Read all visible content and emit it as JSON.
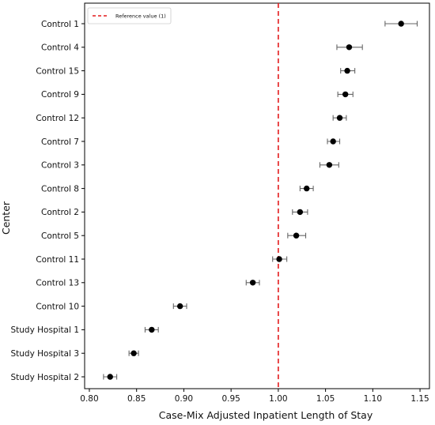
{
  "chart_data": {
    "type": "scatter",
    "title": "",
    "xlabel": "Case-Mix Adjusted Inpatient Length of Stay",
    "ylabel": "Center",
    "xlim": [
      0.795,
      1.16
    ],
    "xticks": [
      0.8,
      0.85,
      0.9,
      0.95,
      1.0,
      1.05,
      1.1,
      1.15
    ],
    "xtick_labels": [
      "0.80",
      "0.85",
      "0.90",
      "0.95",
      "1.00",
      "1.05",
      "1.10",
      "1.15"
    ],
    "grid": false,
    "legend_position": "top-left",
    "reference_line": {
      "value": 1.0,
      "label": "Reference value (1)",
      "color": "#e31a1c",
      "style": "dashed"
    },
    "marker_color": "#000000",
    "errorbar_color": "#666666",
    "categories": [
      "Control 1",
      "Control 4",
      "Control 15",
      "Control 9",
      "Control 12",
      "Control 7",
      "Control 3",
      "Control 8",
      "Control 2",
      "Control 5",
      "Control 11",
      "Control 13",
      "Control 10",
      "Study Hospital 1",
      "Study Hospital 3",
      "Study Hospital 2"
    ],
    "values": [
      1.13,
      1.075,
      1.073,
      1.071,
      1.065,
      1.058,
      1.054,
      1.03,
      1.023,
      1.019,
      1.001,
      0.973,
      0.896,
      0.866,
      0.847,
      0.822
    ],
    "lower": [
      1.113,
      1.062,
      1.066,
      1.063,
      1.058,
      1.052,
      1.044,
      1.023,
      1.015,
      1.01,
      0.994,
      0.966,
      0.889,
      0.859,
      0.842,
      0.815
    ],
    "upper": [
      1.147,
      1.089,
      1.081,
      1.079,
      1.072,
      1.065,
      1.064,
      1.037,
      1.031,
      1.029,
      1.009,
      0.98,
      0.903,
      0.873,
      0.852,
      0.829
    ]
  }
}
